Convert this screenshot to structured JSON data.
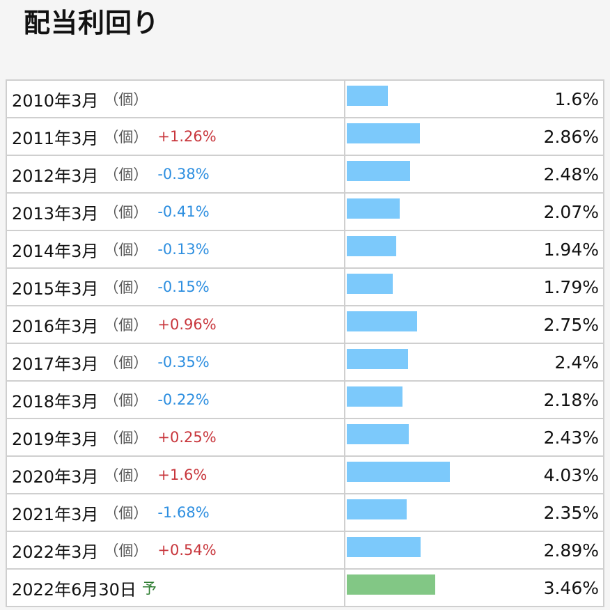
{
  "page_title": "配当利回り",
  "colors": {
    "bar_actual": "#7cc9fb",
    "bar_forecast": "#82c785",
    "change_up": "#c8363c",
    "change_down": "#2e8fe0",
    "forecast_mark": "#2e7d32"
  },
  "chart_data": {
    "type": "bar",
    "orientation": "horizontal",
    "title": "配当利回り",
    "unit": "%",
    "rows": [
      {
        "period": "2010年3月",
        "unit_label": "（個）",
        "change": "",
        "direction": "",
        "value_text": "1.6%",
        "value": 1.6,
        "forecast": false
      },
      {
        "period": "2011年3月",
        "unit_label": "（個）",
        "change": "+1.26%",
        "direction": "up",
        "value_text": "2.86%",
        "value": 2.86,
        "forecast": false
      },
      {
        "period": "2012年3月",
        "unit_label": "（個）",
        "change": "-0.38%",
        "direction": "down",
        "value_text": "2.48%",
        "value": 2.48,
        "forecast": false
      },
      {
        "period": "2013年3月",
        "unit_label": "（個）",
        "change": "-0.41%",
        "direction": "down",
        "value_text": "2.07%",
        "value": 2.07,
        "forecast": false
      },
      {
        "period": "2014年3月",
        "unit_label": "（個）",
        "change": "-0.13%",
        "direction": "down",
        "value_text": "1.94%",
        "value": 1.94,
        "forecast": false
      },
      {
        "period": "2015年3月",
        "unit_label": "（個）",
        "change": "-0.15%",
        "direction": "down",
        "value_text": "1.79%",
        "value": 1.79,
        "forecast": false
      },
      {
        "period": "2016年3月",
        "unit_label": "（個）",
        "change": "+0.96%",
        "direction": "up",
        "value_text": "2.75%",
        "value": 2.75,
        "forecast": false
      },
      {
        "period": "2017年3月",
        "unit_label": "（個）",
        "change": "-0.35%",
        "direction": "down",
        "value_text": "2.4%",
        "value": 2.4,
        "forecast": false
      },
      {
        "period": "2018年3月",
        "unit_label": "（個）",
        "change": "-0.22%",
        "direction": "down",
        "value_text": "2.18%",
        "value": 2.18,
        "forecast": false
      },
      {
        "period": "2019年3月",
        "unit_label": "（個）",
        "change": "+0.25%",
        "direction": "up",
        "value_text": "2.43%",
        "value": 2.43,
        "forecast": false
      },
      {
        "period": "2020年3月",
        "unit_label": "（個）",
        "change": "+1.6%",
        "direction": "up",
        "value_text": "4.03%",
        "value": 4.03,
        "forecast": false
      },
      {
        "period": "2021年3月",
        "unit_label": "（個）",
        "change": "-1.68%",
        "direction": "down",
        "value_text": "2.35%",
        "value": 2.35,
        "forecast": false
      },
      {
        "period": "2022年3月",
        "unit_label": "（個）",
        "change": "+0.54%",
        "direction": "up",
        "value_text": "2.89%",
        "value": 2.89,
        "forecast": false
      },
      {
        "period": "2022年6月30日",
        "unit_label": "",
        "change": "",
        "direction": "",
        "forecast_label": "予",
        "value_text": "3.46%",
        "value": 3.46,
        "forecast": true
      }
    ]
  }
}
